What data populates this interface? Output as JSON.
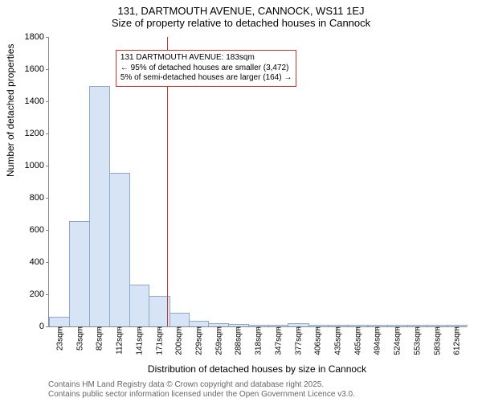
{
  "title_line1": "131, DARTMOUTH AVENUE, CANNOCK, WS11 1EJ",
  "title_line2": "Size of property relative to detached houses in Cannock",
  "ylabel": "Number of detached properties",
  "xlabel": "Distribution of detached houses by size in Cannock",
  "footer1": "Contains HM Land Registry data © Crown copyright and database right 2025.",
  "footer2": "Contains public sector information licensed under the Open Government Licence v3.0.",
  "chart": {
    "type": "histogram",
    "ylim": [
      0,
      1800
    ],
    "ytick_step": 200,
    "yticks": [
      0,
      200,
      400,
      600,
      800,
      1000,
      1200,
      1400,
      1600,
      1800
    ],
    "x_range_sqm": [
      8,
      627
    ],
    "xtick_labels": [
      "23sqm",
      "53sqm",
      "82sqm",
      "112sqm",
      "141sqm",
      "171sqm",
      "200sqm",
      "229sqm",
      "259sqm",
      "288sqm",
      "318sqm",
      "347sqm",
      "377sqm",
      "406sqm",
      "435sqm",
      "465sqm",
      "494sqm",
      "524sqm",
      "553sqm",
      "583sqm",
      "612sqm"
    ],
    "xtick_sqm": [
      23,
      53,
      82,
      112,
      141,
      171,
      200,
      229,
      259,
      288,
      318,
      347,
      377,
      406,
      435,
      465,
      494,
      524,
      553,
      583,
      612
    ],
    "bar_color": "#d6e4f5",
    "bar_border": "#8fa8c8",
    "bars": [
      {
        "x_sqm": 8,
        "w_sqm": 30,
        "value": 55
      },
      {
        "x_sqm": 38,
        "w_sqm": 30,
        "value": 650
      },
      {
        "x_sqm": 68,
        "w_sqm": 29,
        "value": 1490
      },
      {
        "x_sqm": 97,
        "w_sqm": 30,
        "value": 950
      },
      {
        "x_sqm": 127,
        "w_sqm": 29,
        "value": 255
      },
      {
        "x_sqm": 156,
        "w_sqm": 30,
        "value": 185
      },
      {
        "x_sqm": 186,
        "w_sqm": 29,
        "value": 80
      },
      {
        "x_sqm": 215,
        "w_sqm": 29,
        "value": 30
      },
      {
        "x_sqm": 244,
        "w_sqm": 30,
        "value": 15
      },
      {
        "x_sqm": 274,
        "w_sqm": 29,
        "value": 8
      },
      {
        "x_sqm": 303,
        "w_sqm": 30,
        "value": 5
      },
      {
        "x_sqm": 333,
        "w_sqm": 29,
        "value": 4
      },
      {
        "x_sqm": 362,
        "w_sqm": 30,
        "value": 15
      },
      {
        "x_sqm": 392,
        "w_sqm": 29,
        "value": 3
      },
      {
        "x_sqm": 421,
        "w_sqm": 29,
        "value": 2
      },
      {
        "x_sqm": 450,
        "w_sqm": 30,
        "value": 2
      },
      {
        "x_sqm": 480,
        "w_sqm": 29,
        "value": 1
      },
      {
        "x_sqm": 509,
        "w_sqm": 30,
        "value": 1
      },
      {
        "x_sqm": 539,
        "w_sqm": 29,
        "value": 1
      },
      {
        "x_sqm": 568,
        "w_sqm": 30,
        "value": 1
      },
      {
        "x_sqm": 598,
        "w_sqm": 29,
        "value": 1
      }
    ],
    "reference_line": {
      "x_sqm": 183,
      "color": "#cc3333"
    },
    "annotation": {
      "line1": "131 DARTMOUTH AVENUE: 183sqm",
      "line2": "← 95% of detached houses are smaller (3,472)",
      "line3": "5% of semi-detached houses are larger (164) →",
      "border_color": "#cc3333",
      "text_color": "#000000",
      "x_sqm": 190,
      "y_value": 1720
    },
    "background_color": "#ffffff",
    "axis_color": "#888888",
    "tick_fontsize": 11,
    "label_fontsize": 12,
    "title_fontsize": 13
  }
}
